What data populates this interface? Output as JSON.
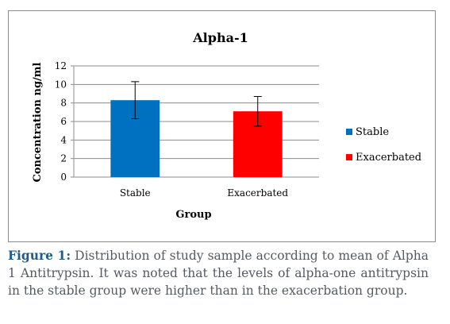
{
  "chart_data": {
    "type": "bar",
    "title": "Alpha-1",
    "xlabel": "Group",
    "ylabel": "Concentration ng/ml",
    "categories": [
      "Stable",
      "Exacerbated"
    ],
    "values": [
      8.3,
      7.1
    ],
    "error_bars": [
      {
        "low": 6.3,
        "high": 10.3
      },
      {
        "low": 5.5,
        "high": 8.7
      }
    ],
    "colors": [
      "#0070c0",
      "#ff0000"
    ],
    "ylim": [
      0,
      12
    ],
    "yticks": [
      "0",
      "2",
      "4",
      "6",
      "8",
      "10",
      "12"
    ],
    "grid": true,
    "legend_position": "right",
    "legend": [
      {
        "label": "Stable",
        "color": "#0070c0"
      },
      {
        "label": "Exacerbated",
        "color": "#ff0000"
      }
    ]
  },
  "caption": {
    "label": "Figure 1:",
    "text": " Distribution of study sample according to mean of Alpha 1 Antitrypsin. It was noted that the levels of alpha-one antitrypsin in the stable group were higher than in the exacerbation group."
  }
}
